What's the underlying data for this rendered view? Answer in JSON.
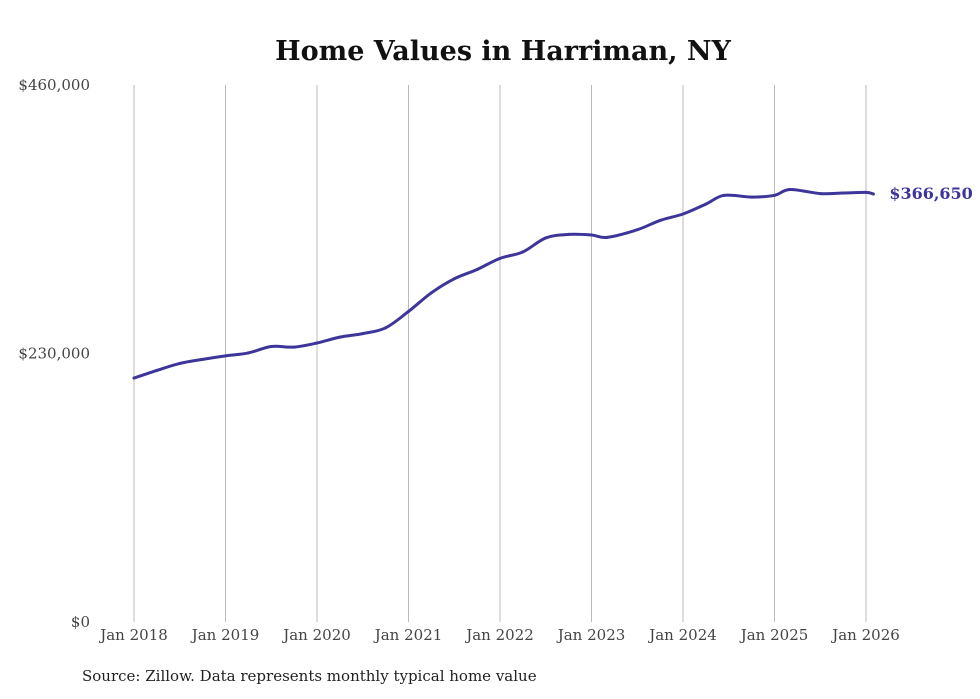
{
  "chart_data": {
    "type": "line",
    "title": "Home Values in Harriman, NY",
    "xlabel": "",
    "ylabel": "",
    "ylim": [
      0,
      460000
    ],
    "xlim": [
      2018.0,
      2026.08
    ],
    "y_ticks": [
      {
        "value": 0,
        "label": "$0"
      },
      {
        "value": 230000,
        "label": "$230,000"
      },
      {
        "value": 460000,
        "label": "$460,000"
      }
    ],
    "x_ticks": [
      {
        "value": 2018,
        "label": "Jan 2018"
      },
      {
        "value": 2019,
        "label": "Jan 2019"
      },
      {
        "value": 2020,
        "label": "Jan 2020"
      },
      {
        "value": 2021,
        "label": "Jan 2021"
      },
      {
        "value": 2022,
        "label": "Jan 2022"
      },
      {
        "value": 2023,
        "label": "Jan 2023"
      },
      {
        "value": 2024,
        "label": "Jan 2024"
      },
      {
        "value": 2025,
        "label": "Jan 2025"
      },
      {
        "value": 2026,
        "label": "Jan 2026"
      }
    ],
    "grid": "vertical",
    "series": [
      {
        "name": "Typical home value",
        "color": "#3d3599",
        "x": [
          2018.0,
          2018.25,
          2018.5,
          2018.75,
          2019.0,
          2019.25,
          2019.5,
          2019.75,
          2020.0,
          2020.25,
          2020.5,
          2020.75,
          2021.0,
          2021.25,
          2021.5,
          2021.75,
          2022.0,
          2022.25,
          2022.5,
          2022.75,
          2023.0,
          2023.17,
          2023.5,
          2023.75,
          2024.0,
          2024.25,
          2024.45,
          2024.75,
          2025.0,
          2025.17,
          2025.5,
          2025.75,
          2026.0,
          2026.08
        ],
        "values": [
          209000,
          215500,
          221500,
          225000,
          228000,
          230500,
          236000,
          235500,
          239000,
          244000,
          247000,
          252000,
          266000,
          282000,
          294000,
          302000,
          311500,
          317000,
          329000,
          332000,
          331500,
          329500,
          336000,
          344000,
          349500,
          358000,
          365500,
          364000,
          365500,
          370500,
          367000,
          367500,
          368000,
          366650
        ]
      }
    ],
    "end_label": "$366,650"
  },
  "source": "Source: Zillow. Data represents monthly typical home value"
}
